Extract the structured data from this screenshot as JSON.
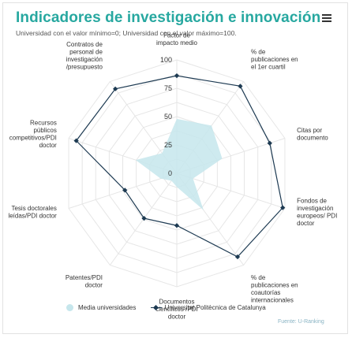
{
  "title": "Indicadores de investigación e innovación",
  "subtitle": "Universidad con el valor mínimo=0; Universidad con el valor máximo=100.",
  "menu_icon": "hamburger-menu-icon",
  "source": "Fuente: U-Ranking",
  "colors": {
    "accent": "#27a8a0",
    "area_fill": "#c6e6ec",
    "upc_line": "#1d3a52",
    "grid": "#e6e6e6"
  },
  "chart_data": {
    "type": "radar",
    "categories": [
      [
        "Factor de",
        "impacto medio"
      ],
      [
        "% de",
        "publicaciones en",
        "el 1er cuartil"
      ],
      [
        "Citas por",
        "documento"
      ],
      [
        "Fondos de",
        "investigación",
        "europeos/ PDI",
        "doctor"
      ],
      [
        "% de",
        "publicaciones en",
        "coautorías",
        "internacionales"
      ],
      [
        "Documentos",
        "científicos /PDI",
        "doctor"
      ],
      [
        "Patentes/PDI",
        "doctor"
      ],
      [
        "Tesis doctorales",
        "leídas/PDI doctor"
      ],
      [
        "Recursos",
        "públicos",
        "competitivos/PDI",
        "doctor"
      ],
      [
        "Contratos de",
        "personal de",
        "investigación",
        "/presupuesto"
      ]
    ],
    "radial_ticks": [
      0,
      25,
      50,
      75,
      100
    ],
    "rmin": 0,
    "rmax": 100,
    "series": [
      {
        "name": "Media universidades",
        "style": "area",
        "values": [
          48,
          52,
          42,
          15,
          40,
          12,
          8,
          15,
          38,
          22
        ]
      },
      {
        "name": "Universitat Politècnica de Catalunya",
        "style": "line",
        "values": [
          86,
          95,
          86,
          98,
          91,
          46,
          49,
          48,
          93,
          92
        ]
      }
    ],
    "legend_position": "bottom"
  }
}
